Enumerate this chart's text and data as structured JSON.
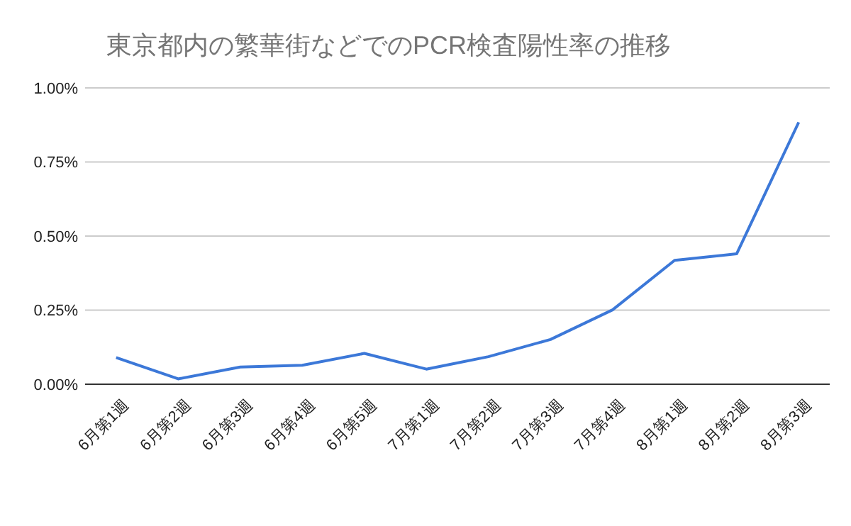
{
  "chart_data": {
    "type": "line",
    "title": "東京都内の繁華街などでのPCR検査陽性率の推移",
    "categories": [
      "6月第1週",
      "6月第2週",
      "6月第3週",
      "6月第4週",
      "6月第5週",
      "7月第1週",
      "7月第2週",
      "7月第3週",
      "7月第4週",
      "8月第1週",
      "8月第2週",
      "8月第3週"
    ],
    "series": [
      {
        "color": "#3c78d8",
        "values": [
          0.09,
          0.018,
          0.058,
          0.064,
          0.104,
          0.051,
          0.093,
          0.151,
          0.251,
          0.418,
          0.44,
          0.884
        ]
      }
    ],
    "ylim": [
      0,
      1
    ],
    "yticks": [
      {
        "value": 0,
        "label": "0.00%"
      },
      {
        "value": 0.25,
        "label": "0.25%"
      },
      {
        "value": 0.5,
        "label": "0.50%"
      },
      {
        "value": 0.75,
        "label": "0.75%"
      },
      {
        "value": 1,
        "label": "1.00%"
      }
    ],
    "grid": "y",
    "marker": "none",
    "line_style": "solid"
  }
}
